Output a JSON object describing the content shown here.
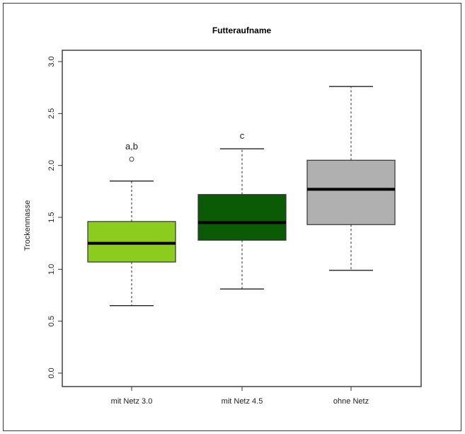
{
  "chart_data": {
    "type": "boxplot",
    "title": "Futteraufname",
    "xlabel": "",
    "ylabel": "Trockenmasse",
    "ylim": [
      0,
      3
    ],
    "yticks": [
      "0.0",
      "0.5",
      "1.0",
      "1.5",
      "2.0",
      "2.5",
      "3.0"
    ],
    "categories": [
      "mit Netz 3.0",
      "mit Netz 4.5",
      "ohne Netz"
    ],
    "boxes": [
      {
        "category": "mit Netz 3.0",
        "whisker_low": 0.65,
        "q1": 1.07,
        "median": 1.25,
        "q3": 1.46,
        "whisker_high": 1.85,
        "outliers": [
          2.06
        ],
        "color": "#8ccc1f",
        "annotation": "a,b"
      },
      {
        "category": "mit Netz 4.5",
        "whisker_low": 0.81,
        "q1": 1.28,
        "median": 1.45,
        "q3": 1.72,
        "whisker_high": 2.16,
        "outliers": [],
        "color": "#0b5a05",
        "annotation": "c"
      },
      {
        "category": "ohne Netz",
        "whisker_low": 0.99,
        "q1": 1.43,
        "median": 1.77,
        "q3": 2.05,
        "whisker_high": 2.76,
        "outliers": [],
        "color": "#b0b0b0",
        "annotation": ""
      }
    ],
    "grid": false,
    "legend": "none"
  }
}
